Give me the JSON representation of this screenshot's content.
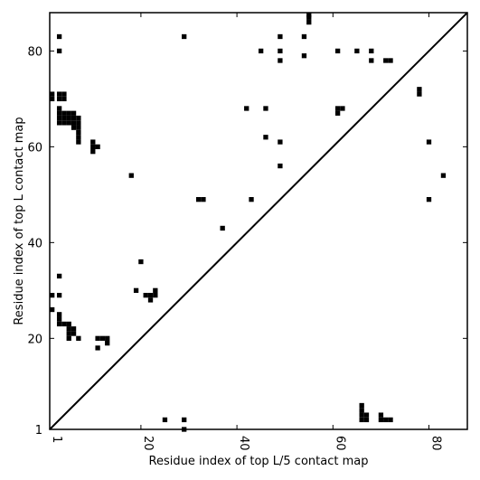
{
  "chart_data": {
    "type": "heatmap",
    "title": "",
    "xlabel": "Residue index of top L/5 contact map",
    "ylabel": "Residue index of top L contact map",
    "xlim": [
      1,
      88
    ],
    "ylim": [
      1,
      88
    ],
    "x_ticks": [
      1,
      20,
      40,
      60,
      80
    ],
    "y_ticks": [
      1,
      20,
      40,
      60,
      80
    ],
    "x_tick_labels": [
      "1",
      "20",
      "40",
      "60",
      "80"
    ],
    "y_tick_labels": [
      "1",
      "20",
      "40",
      "60",
      "80"
    ],
    "diagonal": true,
    "grid": false,
    "color": "#000000",
    "cells": [
      [
        3,
        83
      ],
      [
        3,
        80
      ],
      [
        29,
        83
      ],
      [
        1,
        70
      ],
      [
        1,
        71
      ],
      [
        3,
        70
      ],
      [
        3,
        71
      ],
      [
        4,
        70
      ],
      [
        4,
        71
      ],
      [
        3,
        65
      ],
      [
        3,
        66
      ],
      [
        3,
        67
      ],
      [
        3,
        68
      ],
      [
        4,
        65
      ],
      [
        4,
        66
      ],
      [
        4,
        67
      ],
      [
        5,
        65
      ],
      [
        5,
        66
      ],
      [
        5,
        67
      ],
      [
        6,
        64
      ],
      [
        6,
        65
      ],
      [
        6,
        66
      ],
      [
        6,
        67
      ],
      [
        7,
        63
      ],
      [
        7,
        64
      ],
      [
        7,
        65
      ],
      [
        7,
        66
      ],
      [
        7,
        61
      ],
      [
        7,
        62
      ],
      [
        10,
        59
      ],
      [
        10,
        60
      ],
      [
        10,
        61
      ],
      [
        11,
        60
      ],
      [
        18,
        54
      ],
      [
        32,
        49
      ],
      [
        33,
        49
      ],
      [
        37,
        43
      ],
      [
        42,
        68
      ],
      [
        45,
        80
      ],
      [
        46,
        68
      ],
      [
        46,
        62
      ],
      [
        43,
        49
      ],
      [
        49,
        83
      ],
      [
        49,
        80
      ],
      [
        49,
        78
      ],
      [
        49,
        61
      ],
      [
        49,
        56
      ],
      [
        54,
        83
      ],
      [
        54,
        79
      ],
      [
        55,
        86
      ],
      [
        55,
        87
      ],
      [
        55,
        88
      ],
      [
        61,
        80
      ],
      [
        61,
        67
      ],
      [
        61,
        68
      ],
      [
        62,
        68
      ],
      [
        65,
        80
      ],
      [
        68,
        80
      ],
      [
        68,
        78
      ],
      [
        71,
        78
      ],
      [
        72,
        78
      ],
      [
        78,
        71
      ],
      [
        78,
        72
      ],
      [
        80,
        61
      ],
      [
        80,
        49
      ],
      [
        83,
        54
      ],
      [
        3,
        33
      ],
      [
        1,
        29
      ],
      [
        3,
        29
      ],
      [
        1,
        26
      ],
      [
        3,
        23
      ],
      [
        3,
        24
      ],
      [
        3,
        25
      ],
      [
        4,
        23
      ],
      [
        5,
        23
      ],
      [
        5,
        20
      ],
      [
        5,
        21
      ],
      [
        5,
        22
      ],
      [
        6,
        21
      ],
      [
        6,
        22
      ],
      [
        7,
        20
      ],
      [
        11,
        18
      ],
      [
        11,
        20
      ],
      [
        12,
        20
      ],
      [
        13,
        19
      ],
      [
        13,
        20
      ],
      [
        19,
        30
      ],
      [
        20,
        36
      ],
      [
        21,
        29
      ],
      [
        22,
        28
      ],
      [
        22,
        29
      ],
      [
        23,
        29
      ],
      [
        23,
        30
      ],
      [
        25,
        3
      ],
      [
        29,
        3
      ],
      [
        29,
        1
      ],
      [
        66,
        3
      ],
      [
        66,
        4
      ],
      [
        66,
        5
      ],
      [
        66,
        6
      ],
      [
        67,
        3
      ],
      [
        67,
        4
      ],
      [
        70,
        3
      ],
      [
        70,
        4
      ],
      [
        71,
        3
      ],
      [
        72,
        3
      ]
    ]
  }
}
